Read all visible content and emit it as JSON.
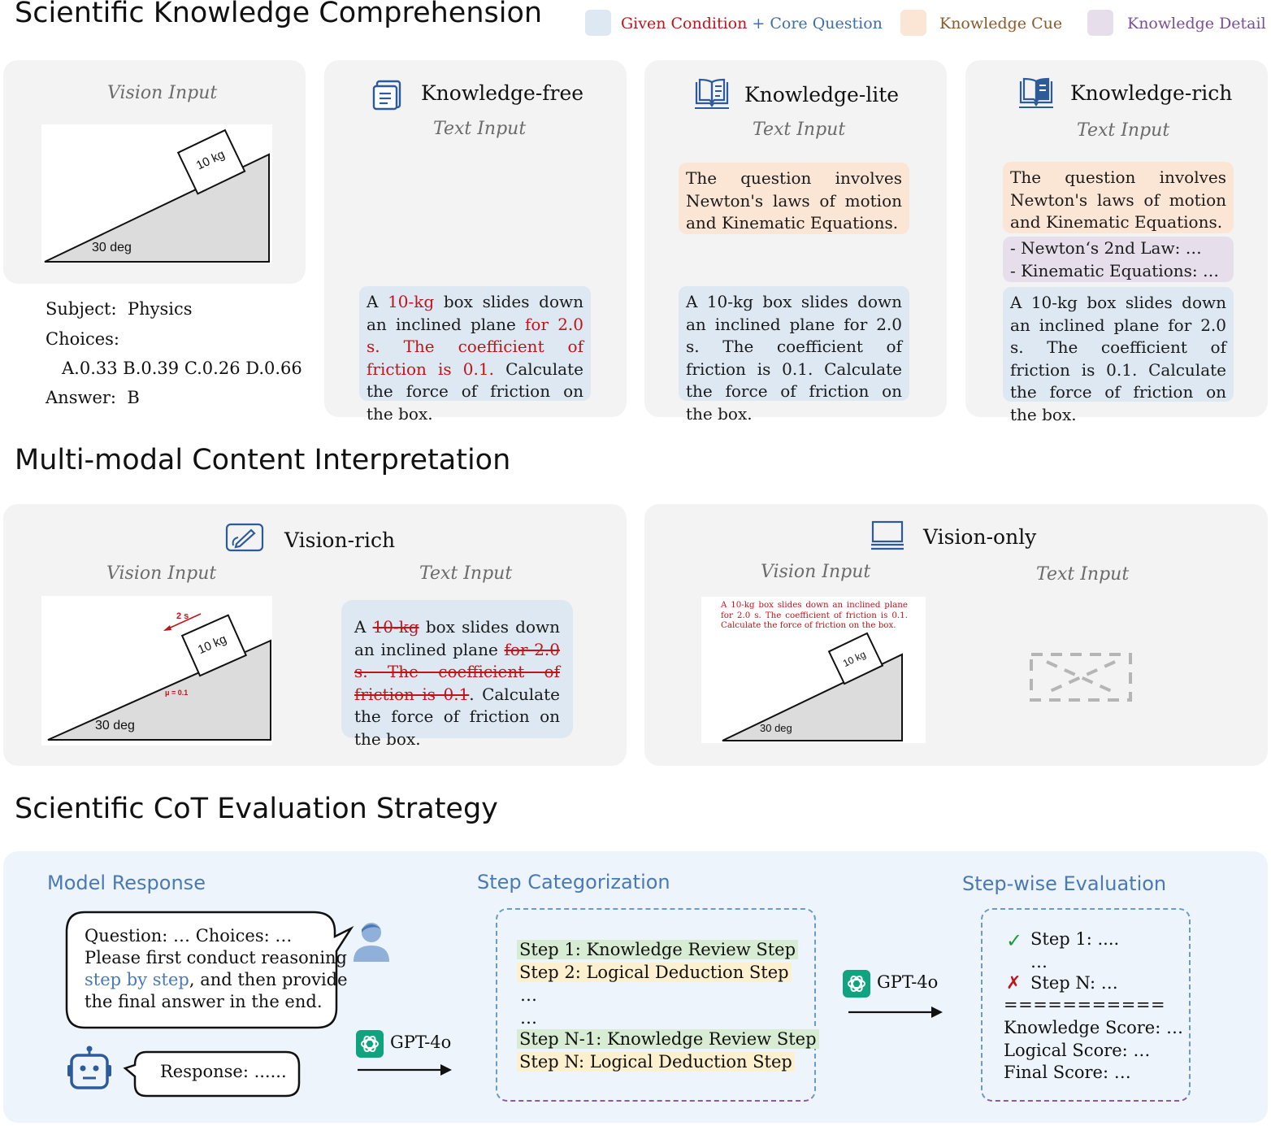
{
  "sections": {
    "s1": "Scientific Knowledge Comprehension",
    "s2": "Multi-modal Content Interpretation",
    "s3": "Scientific CoT Evaluation Strategy"
  },
  "legend": {
    "given_condition": "Given Condition",
    "plus": "+",
    "core_question": "Core Question",
    "knowledge_cue": "Knowledge Cue",
    "knowledge_detail": "Knowledge Detail",
    "colors": {
      "blue": "#dde8f2",
      "orange": "#fbe6d6",
      "purple": "#e6dfeb",
      "red": "#c0141a"
    }
  },
  "labels": {
    "vision_input": "Vision Input",
    "text_input": "Text Input"
  },
  "figure": {
    "mass": "10 kg",
    "angle": "30 deg",
    "time": "2 s",
    "mu": "μ = 0.1",
    "embedded_text": "A 10-kg box slides down an inclined plane for 2.0 s. The coefficient of friction is 0.1. Calculate the force of friction on the box."
  },
  "meta": {
    "subject_label": "Subject:",
    "subject": "Physics",
    "choices_label": "Choices:",
    "choices": "A.0.33 B.0.39 C.0.26 D.0.66",
    "answer_label": "Answer:",
    "answer": "B"
  },
  "panels": {
    "free": {
      "title": "Knowledge-free",
      "icon": "document-icon"
    },
    "lite": {
      "title": "Knowledge-lite",
      "icon": "open-book-icon"
    },
    "rich": {
      "title": "Knowledge-rich",
      "icon": "book-icon"
    },
    "vision_rich": {
      "title": "Vision-rich",
      "icon": "pencil-icon"
    },
    "vision_only": {
      "title": "Vision-only",
      "icon": "monitor-icon"
    }
  },
  "question": {
    "p1": "A ",
    "p2": "10-kg",
    "p3": " box slides down an inclined plane ",
    "p4": "for 2.0 s. The coefficient of friction is 0.1.",
    "p5": " Calculate the force of friction on the box.",
    "vr_p4": "for 2.0 s. The coefficient of friction is 0.1",
    "vr_p5": ". Calculate the force of friction on the box."
  },
  "knowledge": {
    "cue": "The question involves Newton's laws of motion and Kinematic Equations.",
    "detail1": "- Newton‘s 2nd Law: …",
    "detail2": "- Kinematic Equations: …"
  },
  "cot": {
    "model_response": "Model Response",
    "step_categorization": "Step Categorization",
    "stepwise_evaluation": "Step-wise Evaluation",
    "prompt_line1": "Question: …      Choices: …",
    "prompt_line2": "Please first conduct reasoning",
    "prompt_line3a": "step by step",
    "prompt_line3b": ", and then provide",
    "prompt_line4": "the final answer in the end.",
    "response": "Response: ......",
    "gpt": "GPT-4o",
    "step1": "Step 1: Knowledge Review Step",
    "step2": "Step 2: Logical Deduction Step",
    "ellipsis": "…",
    "stepn1": "Step N-1: Knowledge Review Step",
    "stepn": "Step N: Logical Deduction Step",
    "eval_step1": "Step 1: ....",
    "eval_ellipsis": "…",
    "eval_stepn": "Step N: …",
    "separator": "===========",
    "knowledge_score": "Knowledge Score: …",
    "logical_score": "Logical Score: …",
    "final_score": "Final Score: …",
    "check": "✓",
    "cross": "✗"
  }
}
